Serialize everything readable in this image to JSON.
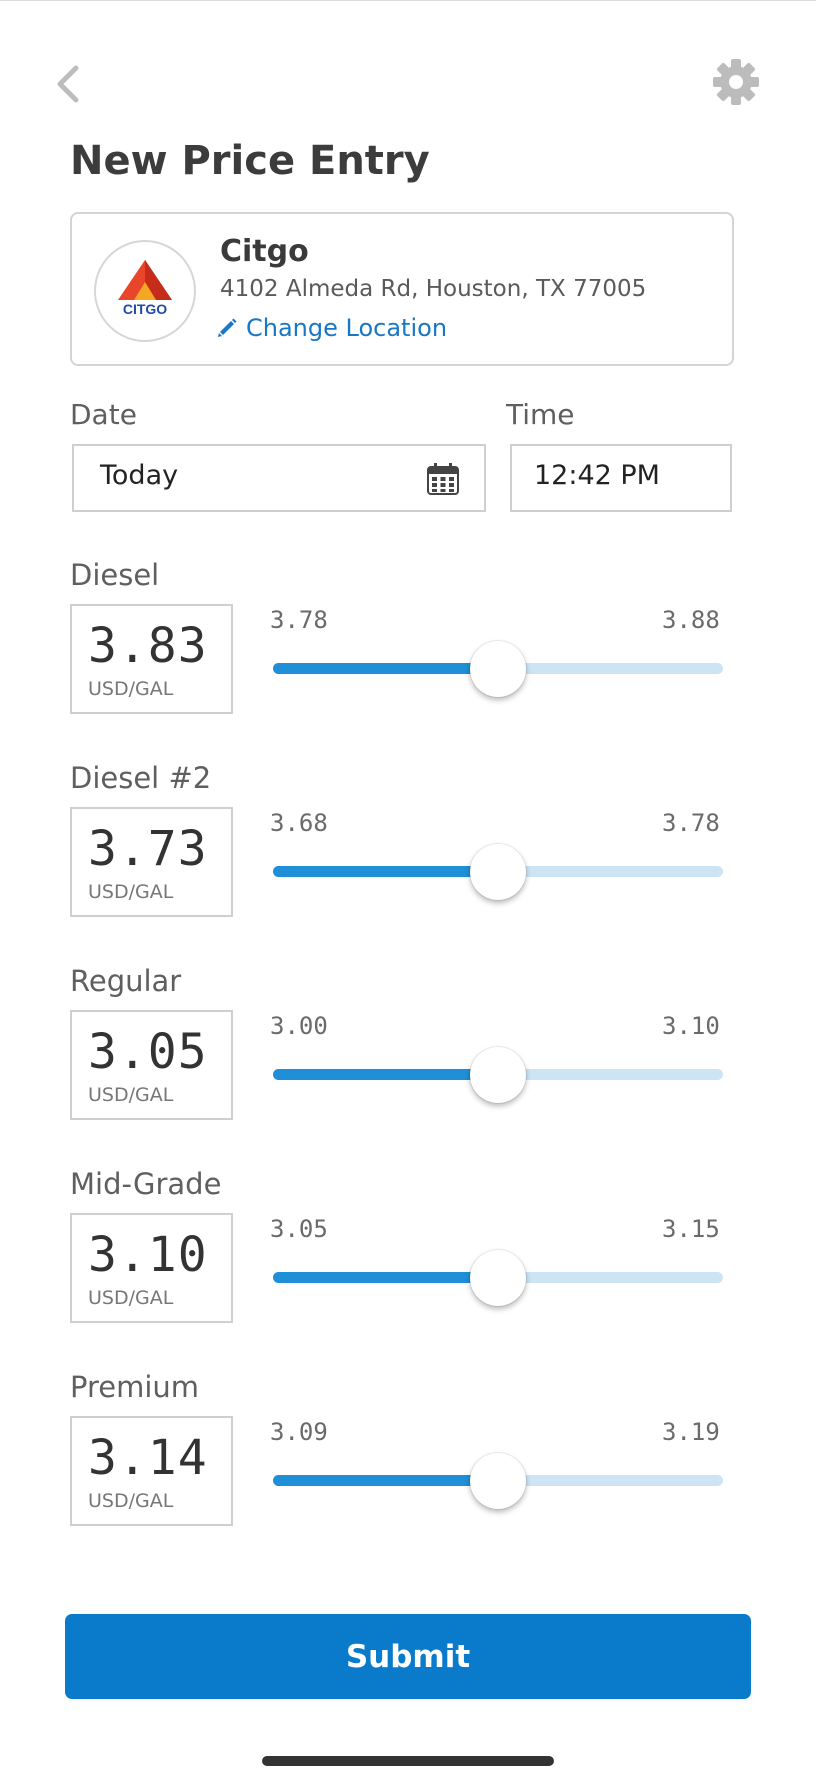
{
  "colors": {
    "accent": "#1f8fd8",
    "submit_bg": "#0a7bcb",
    "link": "#1877c6",
    "track_bg": "#cde4f5"
  },
  "header": {
    "title": "New Price Entry",
    "back_icon": "chevron-left-icon",
    "settings_icon": "gear-icon"
  },
  "location": {
    "brand_text": "CITGO",
    "name": "Citgo",
    "address": "4102 Almeda Rd, Houston, TX 77005",
    "change_label": "Change Location",
    "change_icon": "pencil-icon"
  },
  "date": {
    "label": "Date",
    "value": "Today",
    "icon": "calendar-icon"
  },
  "time": {
    "label": "Time",
    "value": "12:42 PM"
  },
  "fuels": [
    {
      "label": "Diesel",
      "price": "3.83",
      "unit": "USD/GAL",
      "min": "3.78",
      "max": "3.88",
      "level": 0.5
    },
    {
      "label": "Diesel #2",
      "price": "3.73",
      "unit": "USD/GAL",
      "min": "3.68",
      "max": "3.78",
      "level": 0.5
    },
    {
      "label": "Regular",
      "price": "3.05",
      "unit": "USD/GAL",
      "min": "3.00",
      "max": "3.10",
      "level": 0.5
    },
    {
      "label": "Mid-Grade",
      "price": "3.10",
      "unit": "USD/GAL",
      "min": "3.05",
      "max": "3.15",
      "level": 0.5
    },
    {
      "label": "Premium",
      "price": "3.14",
      "unit": "USD/GAL",
      "min": "3.09",
      "max": "3.19",
      "level": 0.5
    }
  ],
  "submit": {
    "label": "Submit"
  }
}
